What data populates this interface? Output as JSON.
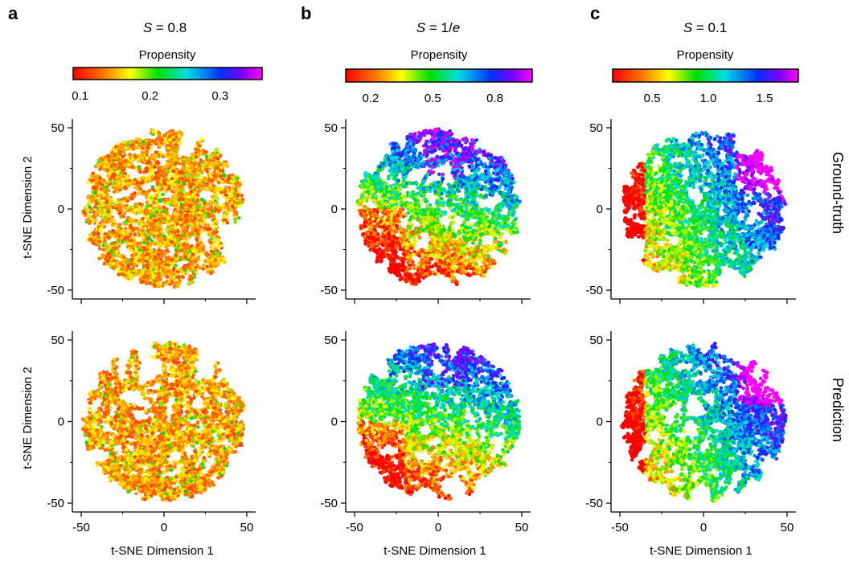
{
  "chart_data": [
    {
      "type": "scatter",
      "panel": "a",
      "parameter": {
        "symbol": "S",
        "rhs": "0.8"
      },
      "colorbar": {
        "label": "Propensity",
        "ticks": [
          "0.1",
          "0.2",
          "0.3"
        ],
        "tick_values": [
          0.1,
          0.2,
          0.3
        ],
        "range": [
          0.09,
          0.36
        ],
        "colormap": "rainbow (red → yellow → green → cyan → blue → magenta)"
      },
      "xlabel": "",
      "ylabel": "t-SNE Dimension 2",
      "xlim": [
        -50,
        50
      ],
      "ylim": [
        -50,
        50
      ],
      "xticks": [
        "-50",
        "0",
        "50"
      ],
      "yticks": [
        "50",
        "0",
        "-50"
      ],
      "row": "Ground-truth",
      "description_stats": {
        "dominant_colors": [
          "red",
          "orange",
          "yellow",
          "light green"
        ],
        "mean_propensity_approx": 0.13
      },
      "seed": 11
    },
    {
      "type": "scatter",
      "panel": "b",
      "parameter": {
        "symbol": "S",
        "rhs": "1/e"
      },
      "colorbar": {
        "label": "Propensity",
        "ticks": [
          "0.2",
          "0.5",
          "0.8"
        ],
        "tick_values": [
          0.2,
          0.5,
          0.8
        ],
        "range": [
          0.08,
          0.98
        ],
        "colormap": "rainbow"
      },
      "xlabel": "",
      "ylabel": "",
      "xlim": [
        -50,
        50
      ],
      "ylim": [
        -50,
        50
      ],
      "xticks": [
        "-50",
        "0",
        "50"
      ],
      "yticks": [
        "50",
        "0",
        "-50"
      ],
      "row": "Ground-truth",
      "description_stats": {
        "low_region": "bottom / left (red)",
        "high_region": "top (blue, magenta)"
      },
      "seed": 22
    },
    {
      "type": "scatter",
      "panel": "c",
      "parameter": {
        "symbol": "S",
        "rhs": "0.1"
      },
      "colorbar": {
        "label": "Propensity",
        "ticks": [
          "0.5",
          "1.0",
          "1.5"
        ],
        "tick_values": [
          0.5,
          1.0,
          1.5
        ],
        "range": [
          0.15,
          1.8
        ],
        "colormap": "rainbow"
      },
      "xlabel": "",
      "ylabel": "",
      "xlim": [
        -50,
        50
      ],
      "ylim": [
        -50,
        50
      ],
      "xticks": [
        "-50",
        "0",
        "50"
      ],
      "yticks": [
        "50",
        "0",
        "-50"
      ],
      "row": "Ground-truth",
      "description_stats": {
        "low_region": "left edge (red/orange)",
        "high_region": "top-right (blue, purple)"
      },
      "seed": 33
    },
    {
      "type": "scatter",
      "panel": "a",
      "xlabel": "t-SNE Dimension 1",
      "ylabel": "t-SNE Dimension 2",
      "xlim": [
        -50,
        50
      ],
      "ylim": [
        -50,
        50
      ],
      "xticks": [
        "-50",
        "0",
        "50"
      ],
      "yticks": [
        "50",
        "0",
        "-50"
      ],
      "row": "Prediction",
      "seed": 44
    },
    {
      "type": "scatter",
      "panel": "b",
      "xlabel": "t-SNE Dimension 1",
      "ylabel": "",
      "xlim": [
        -50,
        50
      ],
      "ylim": [
        -50,
        50
      ],
      "xticks": [
        "-50",
        "0",
        "50"
      ],
      "yticks": [
        "50",
        "0",
        "-50"
      ],
      "row": "Prediction",
      "seed": 55
    },
    {
      "type": "scatter",
      "panel": "c",
      "xlabel": "t-SNE Dimension 1",
      "ylabel": "",
      "xlim": [
        -50,
        50
      ],
      "ylim": [
        -50,
        50
      ],
      "xticks": [
        "-50",
        "0",
        "50"
      ],
      "yticks": [
        "50",
        "0",
        "-50"
      ],
      "row": "Prediction",
      "seed": 66
    }
  ],
  "labels": {
    "panel_letters": [
      "a",
      "b",
      "c"
    ],
    "colorbar_title": "Propensity",
    "row_labels": [
      "Ground-truth",
      "Prediction"
    ],
    "xlabel": "t-SNE Dimension 1",
    "ylabel": "t-SNE Dimension 2"
  }
}
